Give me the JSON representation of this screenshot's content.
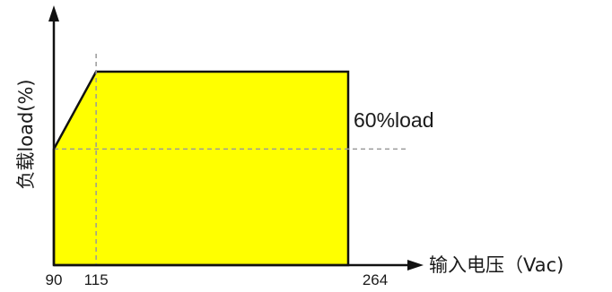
{
  "chart_data": {
    "type": "area",
    "title": "",
    "xlabel": "输入电压（Vac)",
    "ylabel": "负载load(%)",
    "x_ticks": [
      90,
      115,
      264
    ],
    "xlim": [
      90,
      264
    ],
    "ylim": [
      0,
      100
    ],
    "series": [
      {
        "x": [
          90,
          115,
          264,
          264,
          90
        ],
        "y": [
          60,
          100,
          100,
          0,
          0
        ]
      }
    ],
    "reference_lines": {
      "horizontal": {
        "y": 60,
        "label": "60%load"
      },
      "vertical": {
        "x": 115
      }
    },
    "grid": false,
    "colors": {
      "fill": "#ffff00",
      "outline": "#111111",
      "reference": "#9a9a9a",
      "axis": "#111111"
    }
  }
}
